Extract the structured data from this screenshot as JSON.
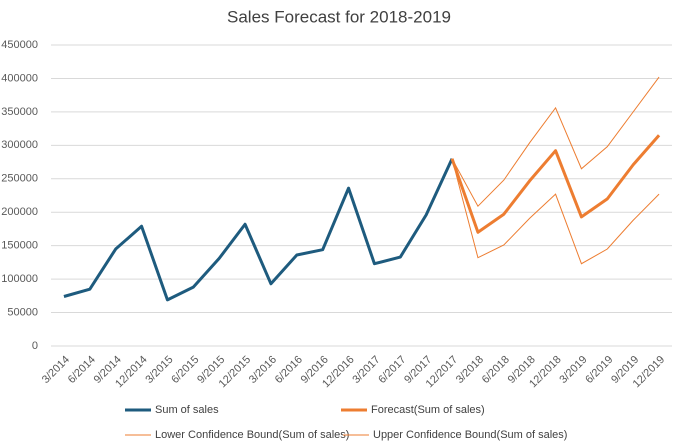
{
  "chart_data": {
    "type": "line",
    "title": "Sales Forecast for 2018-2019",
    "categories": [
      "3/2014",
      "6/2014",
      "9/2014",
      "12/2014",
      "3/2015",
      "6/2015",
      "9/2015",
      "12/2015",
      "3/2016",
      "6/2016",
      "9/2016",
      "12/2016",
      "3/2017",
      "6/2017",
      "9/2017",
      "12/2017",
      "3/2018",
      "6/2018",
      "9/2018",
      "12/2018",
      "3/2019",
      "6/2019",
      "9/2019",
      "12/2019"
    ],
    "series": [
      {
        "name": "Sum of sales",
        "color": "#1e5b7e",
        "values": [
          74000,
          85000,
          145000,
          179000,
          69000,
          88000,
          131000,
          182000,
          93000,
          136000,
          144000,
          236000,
          123000,
          133000,
          196000,
          280000,
          null,
          null,
          null,
          null,
          null,
          null,
          null,
          null
        ]
      },
      {
        "name": "Forecast(Sum of sales)",
        "color": "#ed7d31",
        "values": [
          null,
          null,
          null,
          null,
          null,
          null,
          null,
          null,
          null,
          null,
          null,
          null,
          null,
          null,
          null,
          280000,
          170000,
          197000,
          247000,
          292000,
          193000,
          220000,
          271000,
          315000
        ]
      },
      {
        "name": "Lower Confidence Bound(Sum of sales)",
        "color": "#ed7d31",
        "values": [
          null,
          null,
          null,
          null,
          null,
          null,
          null,
          null,
          null,
          null,
          null,
          null,
          null,
          null,
          null,
          280000,
          132000,
          151000,
          191000,
          227000,
          123000,
          145000,
          188000,
          227000
        ]
      },
      {
        "name": "Upper Confidence Bound(Sum of sales)",
        "color": "#ed7d31",
        "values": [
          null,
          null,
          null,
          null,
          null,
          null,
          null,
          null,
          null,
          null,
          null,
          null,
          null,
          null,
          null,
          280000,
          209000,
          248000,
          304000,
          356000,
          265000,
          298000,
          350000,
          402000
        ]
      }
    ],
    "ylim": [
      0,
      450000
    ],
    "yticks": [
      0,
      50000,
      100000,
      150000,
      200000,
      250000,
      300000,
      350000,
      400000,
      450000
    ],
    "grid": true,
    "legend": "bottom"
  }
}
